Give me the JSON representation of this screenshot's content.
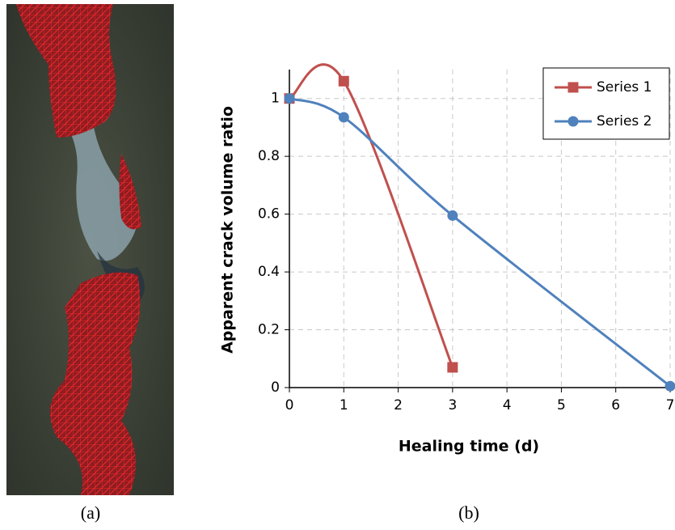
{
  "panel_a_label": "(a)",
  "chart_data": {
    "type": "line",
    "panel_label": "(b)",
    "x_label": "Healing time (d)",
    "y_label": "Apparent crack volume ratio",
    "xlim": [
      0,
      7
    ],
    "ylim": [
      0,
      1.1
    ],
    "xticks": [
      0,
      1,
      2,
      3,
      4,
      5,
      6,
      7
    ],
    "yticks": [
      0,
      0.2,
      0.4,
      0.6,
      0.8,
      1
    ],
    "grid": true,
    "legend": "top-right",
    "smooth": true,
    "series": [
      {
        "name": "Series 1",
        "color": "#c0504d",
        "marker": "square",
        "x": [
          0,
          1,
          3
        ],
        "values": [
          1,
          1.06,
          0.07
        ]
      },
      {
        "name": "Series 2",
        "color": "#4f81bd",
        "marker": "circle",
        "x": [
          0,
          1,
          3,
          7
        ],
        "values": [
          1,
          0.935,
          0.595,
          0.005
        ]
      }
    ]
  }
}
